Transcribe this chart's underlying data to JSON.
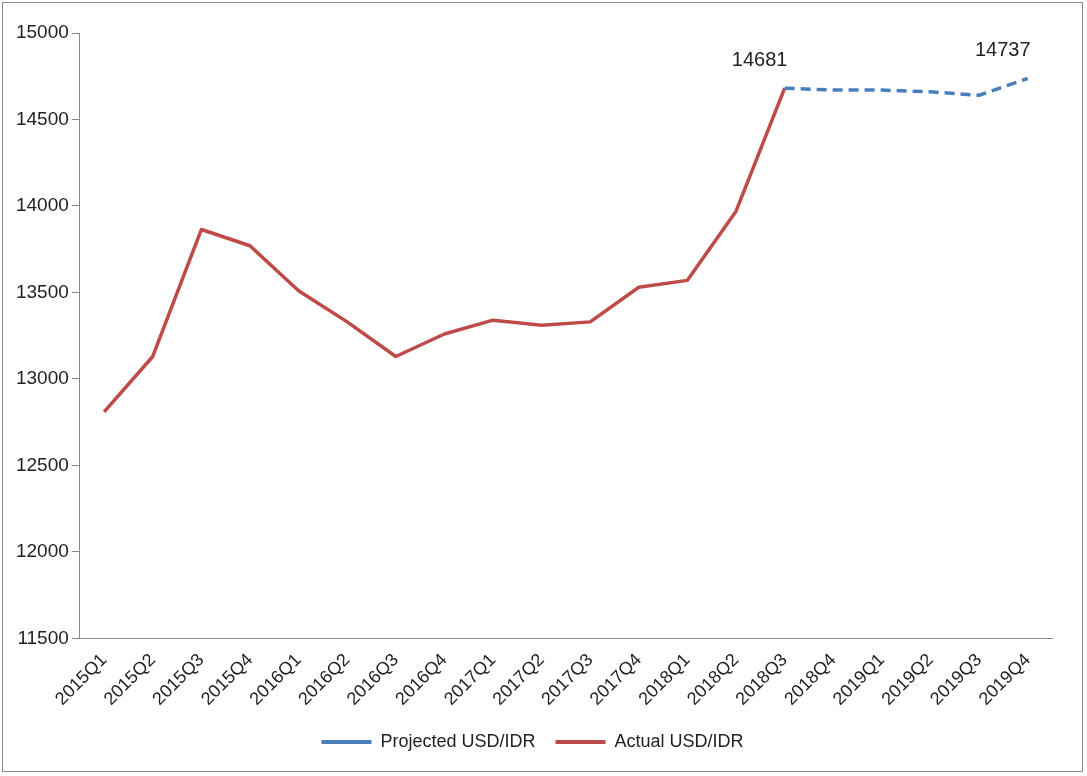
{
  "chart_data": {
    "type": "line",
    "categories": [
      "2015Q1",
      "2015Q2",
      "2015Q3",
      "2015Q4",
      "2016Q1",
      "2016Q2",
      "2016Q3",
      "2016Q4",
      "2017Q1",
      "2017Q2",
      "2017Q3",
      "2017Q4",
      "2018Q1",
      "2018Q2",
      "2018Q3",
      "2018Q4",
      "2019Q1",
      "2019Q2",
      "2019Q3",
      "2019Q4"
    ],
    "series": [
      {
        "name": "Projected USD/IDR",
        "color": "#4a7ebb",
        "line_style": "dashed",
        "values": [
          null,
          null,
          null,
          null,
          null,
          null,
          null,
          null,
          null,
          null,
          null,
          null,
          null,
          null,
          14681,
          14670,
          14670,
          14660,
          14640,
          14737
        ],
        "value_labels": [
          null,
          null,
          null,
          null,
          null,
          null,
          null,
          null,
          null,
          null,
          null,
          null,
          null,
          null,
          null,
          null,
          null,
          null,
          null,
          "14737"
        ]
      },
      {
        "name": "Actual USD/IDR",
        "color": "#be4b48",
        "line_style": "solid",
        "values": [
          12810,
          13130,
          13864,
          13770,
          13510,
          13330,
          13130,
          13260,
          13340,
          13310,
          13330,
          13530,
          13570,
          13970,
          14681,
          null,
          null,
          null,
          null,
          null
        ],
        "value_labels": [
          null,
          null,
          null,
          null,
          null,
          null,
          null,
          null,
          null,
          null,
          null,
          null,
          null,
          null,
          "14681",
          null,
          null,
          null,
          null,
          null
        ]
      }
    ],
    "ylim": [
      11500,
      15000
    ],
    "yticks": [
      11500,
      12000,
      12500,
      13000,
      13500,
      14000,
      14500,
      15000
    ],
    "grid": false,
    "legend": "bottom",
    "marker": "none"
  }
}
